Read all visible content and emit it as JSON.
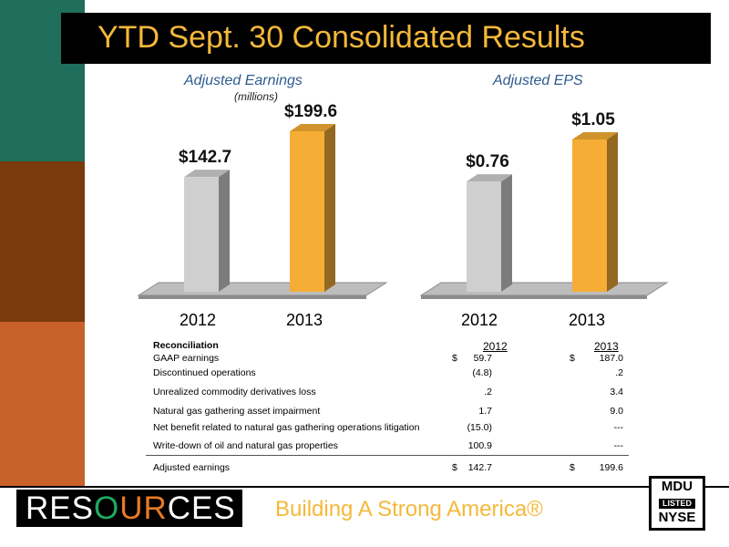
{
  "title": "YTD Sept. 30 Consolidated Results",
  "chart_data": [
    {
      "type": "bar",
      "title": "Adjusted Earnings",
      "subtitle": "(millions)",
      "categories": [
        "2012",
        "2013"
      ],
      "values": [
        142.7,
        199.6
      ],
      "value_labels": [
        "$142.7",
        "$199.6"
      ],
      "colors": [
        "#cfcfcf",
        "#f5ad35"
      ]
    },
    {
      "type": "bar",
      "title": "Adjusted EPS",
      "categories": [
        "2012",
        "2013"
      ],
      "values": [
        0.76,
        1.05
      ],
      "value_labels": [
        "$0.76",
        "$1.05"
      ],
      "colors": [
        "#cfcfcf",
        "#f5ad35"
      ]
    }
  ],
  "reconciliation": {
    "heading": "Reconciliation",
    "col_2012": "2012",
    "col_2013": "2013",
    "dollar_sign": "$",
    "rows": [
      {
        "label": "GAAP earnings",
        "v2012": "59.7",
        "v2013": "187.0"
      },
      {
        "label": "Discontinued operations",
        "v2012": "(4.8)",
        "v2013": ".2"
      },
      {
        "label": "Unrealized commodity derivatives loss",
        "v2012": ".2",
        "v2013": "3.4"
      },
      {
        "label": "Natural gas gathering asset impairment",
        "v2012": "1.7",
        "v2013": "9.0"
      },
      {
        "label": "Net benefit related to natural gas gathering operations litigation",
        "v2012": "(15.0)",
        "v2013": "---"
      },
      {
        "label": "Write-down of oil and natural gas properties",
        "v2012": "100.9",
        "v2013": "---"
      }
    ],
    "total": {
      "label": "Adjusted earnings",
      "v2012": "142.7",
      "v2013": "199.6"
    }
  },
  "footer": {
    "logo_pre": "RES",
    "logo_o": "O",
    "logo_u": "UR",
    "logo_post": "CES",
    "tagline": "Building A Strong America®",
    "badge_top": "MDU",
    "badge_mid": "LISTED",
    "badge_bottom": "NYSE"
  }
}
